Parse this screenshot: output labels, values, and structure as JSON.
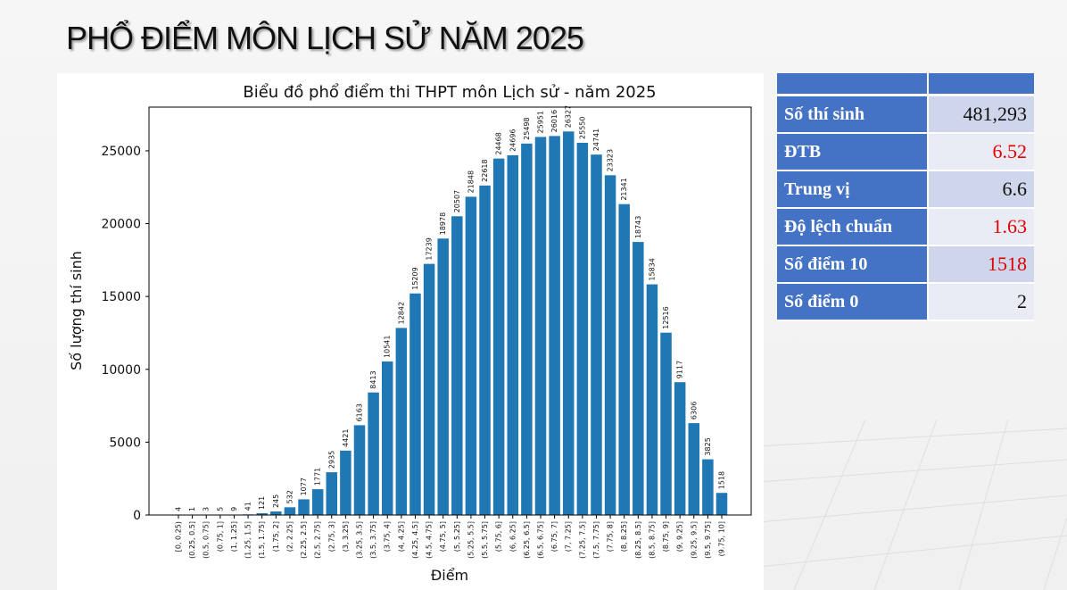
{
  "slide": {
    "title": "PHỔ ĐIỂM MÔN LỊCH SỬ NĂM 2025"
  },
  "stats": {
    "rows": [
      {
        "label": "Số thí sinh",
        "value": "481,293",
        "highlight": false
      },
      {
        "label": "ĐTB",
        "value": "6.52",
        "highlight": true
      },
      {
        "label": "Trung vị",
        "value": "6.6",
        "highlight": false
      },
      {
        "label": "Độ lệch chuẩn",
        "value": "1.63",
        "highlight": true
      },
      {
        "label": "Số điểm 10",
        "value": "1518",
        "highlight": true
      },
      {
        "label": "Số điểm 0",
        "value": "2",
        "highlight": false
      }
    ]
  },
  "colors": {
    "bar": "#1f77b4",
    "table_header": "#4472c4",
    "highlight_text": "#e00000"
  },
  "chart_data": {
    "type": "bar",
    "title": "Biểu đồ phổ điểm thi THPT môn Lịch sử - năm 2025",
    "xlabel": "Điểm",
    "ylabel": "Số lượng thí sinh",
    "ylim": [
      0,
      28000
    ],
    "yticks": [
      0,
      5000,
      10000,
      15000,
      20000,
      25000
    ],
    "grid": false,
    "categories": [
      "[0, 0.25)",
      "(0.25, 0.5]",
      "(0.5, 0.75]",
      "(0.75, 1]",
      "(1, 1.25]",
      "(1.25, 1.5]",
      "(1.5, 1.75]",
      "(1.75, 2]",
      "(2, 2.25]",
      "(2.25, 2.5]",
      "(2.5, 2.75]",
      "(2.75, 3]",
      "(3, 3.25]",
      "(3.25, 3.5]",
      "(3.5, 3.75]",
      "(3.75, 4]",
      "(4, 4.25]",
      "(4.25, 4.5]",
      "(4.5, 4.75]",
      "(4.75, 5]",
      "(5, 5.25]",
      "(5.25, 5.5]",
      "(5.5, 5.75]",
      "(5.75, 6]",
      "(6, 6.25]",
      "(6.25, 6.5]",
      "(6.5, 6.75]",
      "(6.75, 7]",
      "(7, 7.25]",
      "(7.25, 7.5]",
      "(7.5, 7.75]",
      "(7.75, 8]",
      "(8, 8.25]",
      "(8.25, 8.5]",
      "(8.5, 8.75]",
      "(8.75, 9]",
      "(9, 9.25]",
      "(9.25, 9.5]",
      "(9.5, 9.75]",
      "(9.75, 10]"
    ],
    "values": [
      4,
      1,
      3,
      5,
      9,
      41,
      121,
      245,
      532,
      1077,
      1771,
      2935,
      4421,
      6163,
      8413,
      10541,
      12842,
      15209,
      17239,
      18978,
      20507,
      21848,
      22618,
      24468,
      24696,
      25498,
      25951,
      26016,
      26327,
      25550,
      24741,
      23323,
      21341,
      18743,
      15834,
      12516,
      9117,
      6306,
      3825,
      1518
    ]
  }
}
